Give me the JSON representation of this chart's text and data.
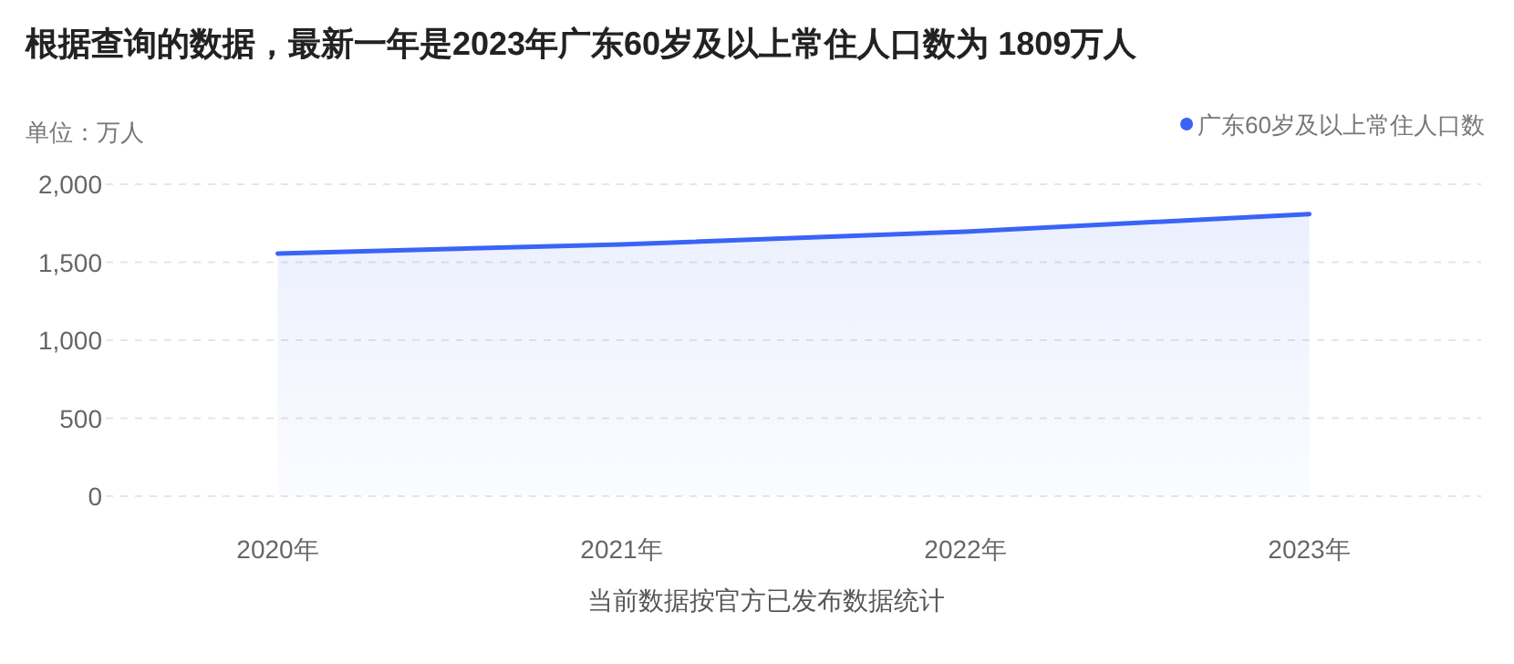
{
  "chart_data": {
    "type": "area",
    "title": "根据查询的数据，最新一年是2023年广东60岁及以上常住人口数为 1809万人",
    "ylabel": "单位：万人",
    "annotations": [
      "当前数据按官方已发布数据统计"
    ],
    "categories": [
      "2020年",
      "2021年",
      "2022年",
      "2023年"
    ],
    "series": [
      {
        "name": "广东60岁及以上常住人口数",
        "color": "#3a64f5",
        "values": [
          1556,
          1614,
          1696,
          1809
        ]
      }
    ],
    "ylim": [
      0,
      2000
    ],
    "yticks": [
      0,
      {
        "value": 500,
        "label": "500"
      },
      {
        "value": 1000,
        "label": "1,000"
      },
      {
        "value": 1500,
        "label": "1,500"
      },
      {
        "value": 2000,
        "label": "2,000"
      }
    ],
    "grid": "y",
    "legend": "top right",
    "marker": "none"
  }
}
